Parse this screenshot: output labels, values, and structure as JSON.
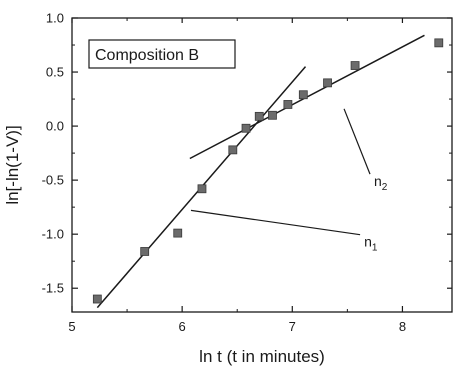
{
  "chart_data": {
    "type": "scatter",
    "xlabel": "ln t (t in minutes)",
    "ylabel": "ln[-ln(1-V)]",
    "xlim": [
      5,
      8.45
    ],
    "ylim": [
      -1.72,
      1.0
    ],
    "x_ticks": [
      5,
      6,
      7,
      8
    ],
    "x_tick_labels": [
      "5",
      "6",
      "7",
      "8"
    ],
    "y_ticks": [
      -1.5,
      -1.0,
      -0.5,
      0.0,
      0.5,
      1.0
    ],
    "y_tick_labels": [
      "-1.5",
      "-1.0",
      "-0.5",
      "0.0",
      "0.5",
      "1.0"
    ],
    "grid": false,
    "legend_box": {
      "text": "Composition B",
      "placement": "top-left"
    },
    "series": [
      {
        "marker": "square",
        "color": "#6b6b6b",
        "points": [
          {
            "x": 5.23,
            "y": -1.6
          },
          {
            "x": 5.66,
            "y": -1.16
          },
          {
            "x": 5.96,
            "y": -0.99
          },
          {
            "x": 6.18,
            "y": -0.58
          },
          {
            "x": 6.46,
            "y": -0.22
          },
          {
            "x": 6.58,
            "y": -0.02
          },
          {
            "x": 6.7,
            "y": 0.09
          },
          {
            "x": 6.82,
            "y": 0.1
          },
          {
            "x": 6.96,
            "y": 0.2
          },
          {
            "x": 7.1,
            "y": 0.29
          },
          {
            "x": 7.32,
            "y": 0.4
          },
          {
            "x": 7.57,
            "y": 0.56
          },
          {
            "x": 8.33,
            "y": 0.77
          }
        ]
      }
    ],
    "fit_lines": [
      {
        "label": "n1",
        "x": [
          5.23,
          7.12
        ],
        "y": [
          -1.68,
          0.55
        ]
      },
      {
        "label": "n2",
        "x": [
          6.07,
          8.2
        ],
        "y": [
          -0.3,
          0.84
        ]
      }
    ],
    "annotations": [
      {
        "label": "n",
        "subscript": "1",
        "x": 7.67,
        "y": -1.06,
        "arrow_to": [
          6.08,
          -0.78
        ]
      },
      {
        "label": "n",
        "subscript": "2",
        "x": 7.76,
        "y": -0.5,
        "arrow_to": [
          7.47,
          0.16
        ]
      }
    ]
  }
}
